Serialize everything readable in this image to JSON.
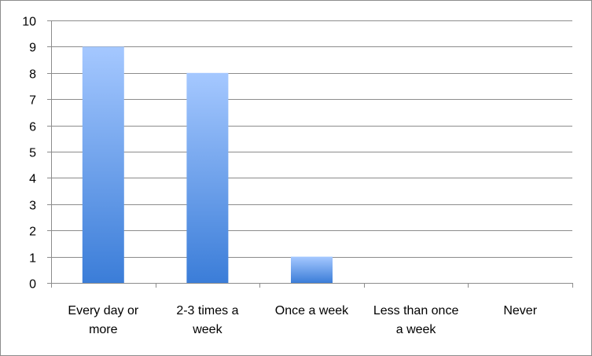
{
  "chart_data": {
    "type": "bar",
    "categories": [
      [
        "Every day or",
        "more"
      ],
      [
        "2-3 times a",
        "week"
      ],
      [
        "Once a week"
      ],
      [
        "Less than once",
        "a week"
      ],
      [
        "Never"
      ]
    ],
    "values": [
      9,
      8,
      1,
      0,
      0
    ],
    "title": "",
    "xlabel": "",
    "ylabel": "",
    "ylim": [
      0,
      10
    ],
    "yticks": [
      "0",
      "1",
      "2",
      "3",
      "4",
      "5",
      "6",
      "7",
      "8",
      "9",
      "10"
    ],
    "grid": true,
    "legend": "none",
    "colors": {
      "bar_top": "#a5c8ff",
      "bar_bottom": "#3b7dd8",
      "grid": "#8c8c8c",
      "axis": "#8c8c8c"
    }
  }
}
